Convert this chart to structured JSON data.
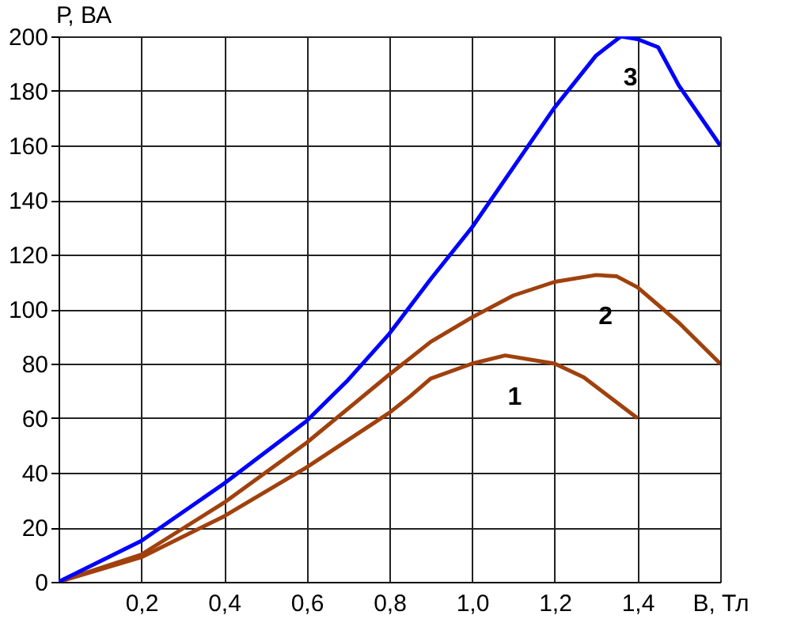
{
  "chart_data": {
    "type": "line",
    "xlabel": "В, Тл",
    "ylabel": "Р, ВА",
    "xlim": [
      0,
      1.6
    ],
    "ylim": [
      0,
      200
    ],
    "xticks": [
      {
        "value": 0.2,
        "label": "0,2"
      },
      {
        "value": 0.4,
        "label": "0,4"
      },
      {
        "value": 0.6,
        "label": "0,6"
      },
      {
        "value": 0.8,
        "label": "0,8"
      },
      {
        "value": 1.0,
        "label": "1,0"
      },
      {
        "value": 1.2,
        "label": "1,2"
      },
      {
        "value": 1.4,
        "label": "1,4"
      },
      {
        "value": 1.6,
        "label": null
      }
    ],
    "yticks": [
      0,
      20,
      40,
      60,
      80,
      100,
      120,
      140,
      160,
      180,
      200
    ],
    "grid": true,
    "marker": "none",
    "line_style": "solid",
    "series": [
      {
        "name": "1",
        "color": "#a0410d",
        "x": [
          0,
          0.2,
          0.4,
          0.6,
          0.8,
          0.85,
          0.9,
          1.0,
          1.08,
          1.2,
          1.27,
          1.4
        ],
        "values": [
          0,
          9,
          24,
          42,
          62,
          68,
          74.5,
          80,
          83,
          80,
          75,
          60
        ]
      },
      {
        "name": "2",
        "color": "#a0410d",
        "x": [
          0,
          0.2,
          0.4,
          0.6,
          0.8,
          0.9,
          1.0,
          1.1,
          1.2,
          1.3,
          1.35,
          1.4,
          1.5,
          1.6
        ],
        "values": [
          0,
          10,
          29,
          51,
          76,
          88,
          97,
          105,
          110,
          112.5,
          112,
          108,
          95,
          80
        ]
      },
      {
        "name": "3",
        "color": "#0000ff",
        "x": [
          0,
          0.2,
          0.4,
          0.6,
          0.7,
          0.8,
          0.9,
          1.0,
          1.1,
          1.2,
          1.3,
          1.36,
          1.4,
          1.45,
          1.5,
          1.6
        ],
        "values": [
          0,
          15,
          36,
          59,
          74,
          91,
          111,
          130,
          152,
          174,
          193,
          200,
          199,
          196,
          182,
          160
        ]
      }
    ]
  }
}
